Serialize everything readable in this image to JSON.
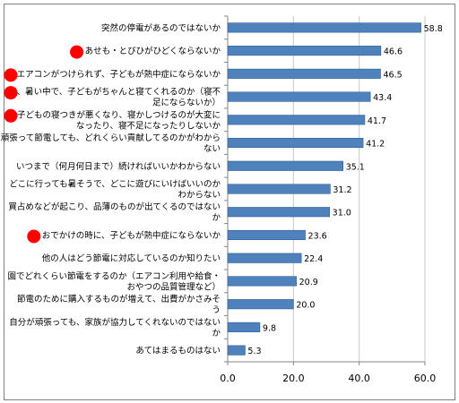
{
  "chart_data": {
    "type": "bar",
    "orientation": "horizontal",
    "categories": [
      [
        "突然の停電があるのではないか"
      ],
      [
        "あせも・とびひがひどくならないか"
      ],
      [
        "エアコンがつけられず、子どもが熱中症にならないか"
      ],
      [
        "夜、暑い中で、子どもがちゃんと寝てくれるのか（寝不",
        "足にならないか）"
      ],
      [
        "子どもの寝つきが悪くなり、寝かしつけるのが大変に",
        "なったり、寝不足になったりしないか"
      ],
      [
        "頑張って節電しても、どれくらい貢献してるのかがわから",
        "ない"
      ],
      [
        "いつまで（何月何日まで）続ければいいかわからない"
      ],
      [
        "どこに行っても暑そうで、どこに遊びにいけばいいのか",
        "わからない"
      ],
      [
        "買占めなどが起こり、品薄のものが出てくるのではない",
        "か"
      ],
      [
        "おでかけの時に、子どもが熱中症にならないか"
      ],
      [
        "他の人はどう節電に対応しているのか知りたい"
      ],
      [
        "園でどれくらい節電をするのか（エアコン利用や給食・",
        "おやつの品質管理など）"
      ],
      [
        "節電のために購入するものが増えて、出費がかさみそ",
        "う"
      ],
      [
        "自分が頑張っても、家族が協力してくれないのではない",
        "か"
      ],
      [
        "あてはまるものはない"
      ]
    ],
    "values": [
      58.8,
      46.6,
      46.5,
      43.4,
      41.7,
      41.2,
      35.1,
      31.2,
      31.0,
      23.6,
      22.4,
      20.9,
      20.0,
      9.8,
      5.3
    ],
    "value_labels": [
      "58.8",
      "46.6",
      "46.5",
      "43.4",
      "41.7",
      "41.2",
      "35.1",
      "31.2",
      "31.0",
      "23.6",
      "22.4",
      "20.9",
      "20.0",
      "9.8",
      "5.3"
    ],
    "xlim": [
      0,
      60
    ],
    "x_ticks": [
      "0.0",
      "20.0",
      "40.0",
      "60.0"
    ],
    "highlighted": [
      1,
      2,
      3,
      4,
      9
    ],
    "grid": true,
    "legend": "none",
    "colors": {
      "bar": "#4f81bd",
      "bar_edge": "#2f5f93",
      "marker": "#ff0000",
      "grid": "#c8c8c8",
      "axis": "#868686"
    }
  }
}
